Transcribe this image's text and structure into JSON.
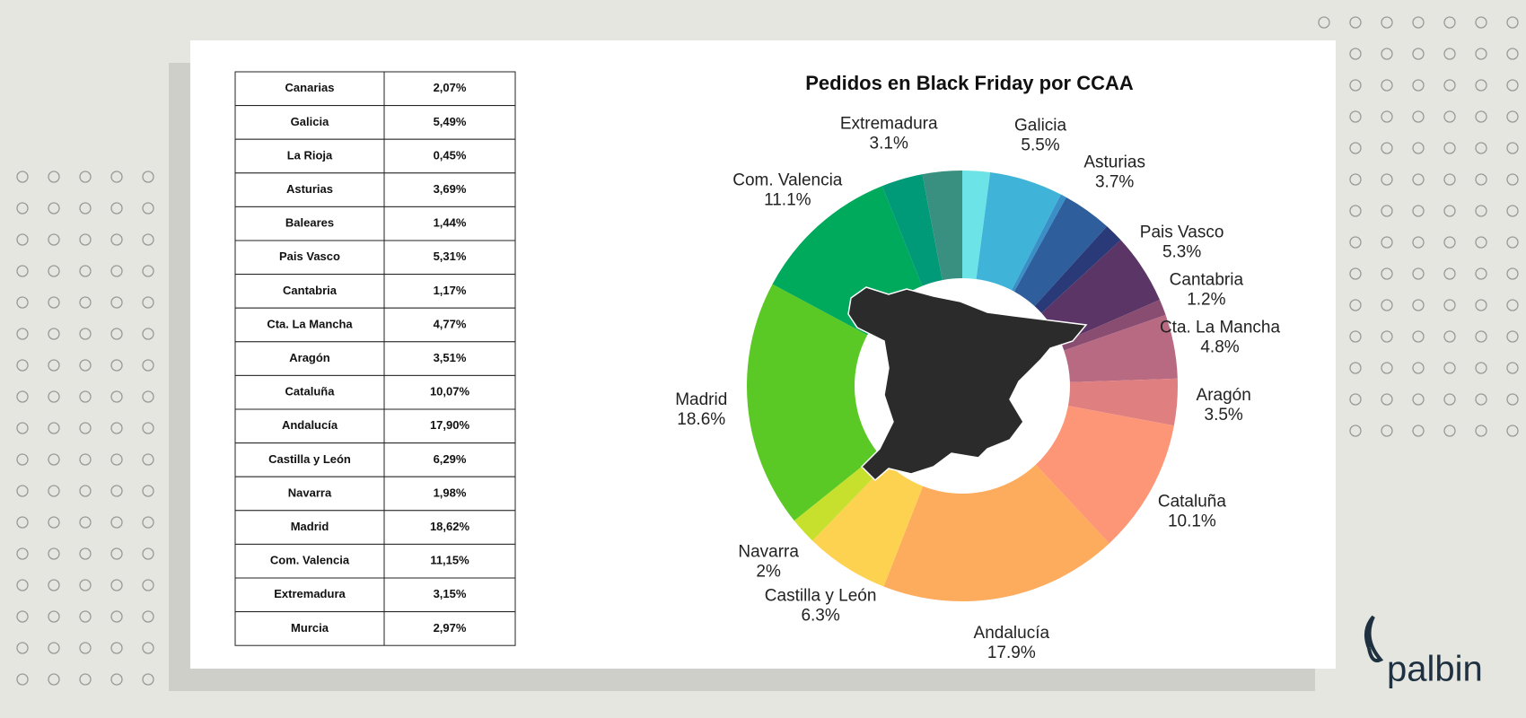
{
  "chart_data": {
    "type": "pie",
    "title": "Pedidos en Black Friday por CCAA",
    "categories": [
      null,
      "Galicia",
      null,
      "Asturias",
      null,
      "Pais Vasco",
      "Cantabria",
      "Cta. La Mancha",
      "Aragón",
      "Cataluña",
      "Andalucía",
      "Castilla y León",
      "Navarra",
      "Madrid",
      "Com. Valencia",
      "Extremadura",
      null
    ],
    "values": [
      2.07,
      5.5,
      0.45,
      3.7,
      1.44,
      5.3,
      1.2,
      4.8,
      3.5,
      10.1,
      17.9,
      6.3,
      2,
      18.6,
      11.1,
      3.1,
      2.97
    ],
    "value_labels": [
      null,
      "5.5%",
      null,
      "3.7%",
      null,
      "5.3%",
      "1.2%",
      "4.8%",
      "3.5%",
      "10.1%",
      "17.9%",
      "6.3%",
      "2%",
      "18.6%",
      "11.1%",
      "3.1%",
      null
    ],
    "colors": [
      "#6ce3e6",
      "#3fb4d8",
      "#3a8fc7",
      "#2e5f9c",
      "#2a3a78",
      "#5a3566",
      "#8a4d72",
      "#b86a82",
      "#e07f80",
      "#fd9676",
      "#fdab5c",
      "#fdd250",
      "#c7e02d",
      "#5bc925",
      "#00aa5c",
      "#009a78",
      "#3a9080"
    ],
    "hole": 0.5
  },
  "table": {
    "rows": [
      [
        "Canarias",
        "2,07%"
      ],
      [
        "Galicia",
        "5,49%"
      ],
      [
        "La Rioja",
        "0,45%"
      ],
      [
        "Asturias",
        "3,69%"
      ],
      [
        "Baleares",
        "1,44%"
      ],
      [
        "Pais Vasco",
        "5,31%"
      ],
      [
        "Cantabria",
        "1,17%"
      ],
      [
        "Cta. La Mancha",
        "4,77%"
      ],
      [
        "Aragón",
        "3,51%"
      ],
      [
        "Cataluña",
        "10,07%"
      ],
      [
        "Andalucía",
        "17,90%"
      ],
      [
        "Castilla y León",
        "6,29%"
      ],
      [
        "Navarra",
        "1,98%"
      ],
      [
        "Madrid",
        "18,62%"
      ],
      [
        "Com. Valencia",
        "11,15%"
      ],
      [
        "Extremadura",
        "3,15%"
      ],
      [
        "Murcia",
        "2,97%"
      ]
    ]
  },
  "brand": "palbin"
}
